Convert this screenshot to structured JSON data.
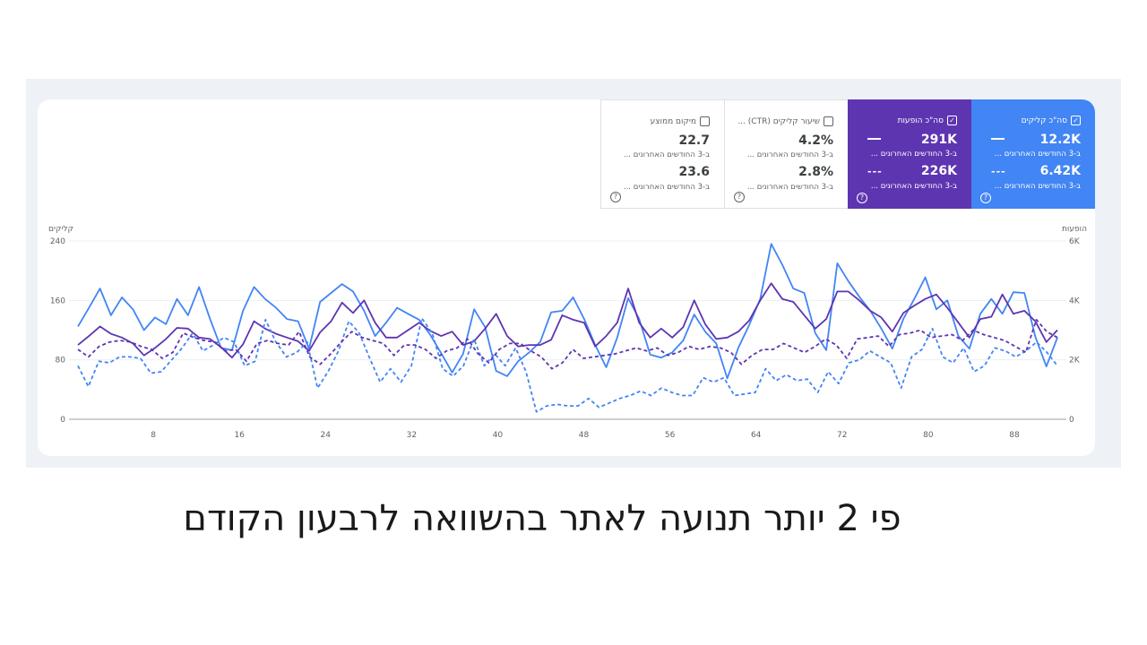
{
  "tiles": [
    {
      "title": "סה\"כ קליקים",
      "checked": true,
      "value_a": "12.2K",
      "sub_a": "ב-3 החודשים האחרונים ...",
      "value_b": "6.42K",
      "sub_b": "ב-3 החודשים האחרונים ...",
      "color": "#4285f4"
    },
    {
      "title": "סה\"כ הופעות",
      "checked": true,
      "value_a": "291K",
      "sub_a": "ב-3 החודשים האחרונים ...",
      "value_b": "226K",
      "sub_b": "ב-3 החודשים האחרונים ...",
      "color": "#5e35b1"
    },
    {
      "title": "שיעור קליקים (CTR) ...",
      "checked": false,
      "value_a": "4.2%",
      "sub_a": "ב-3 החודשים האחרונים ...",
      "value_b": "2.8%",
      "sub_b": "ב-3 החודשים האחרונים ...",
      "color": "#ffffff"
    },
    {
      "title": "מיקום ממוצע",
      "checked": false,
      "value_a": "22.7",
      "sub_a": "ב-3 החודשים האחרונים ...",
      "value_b": "23.6",
      "sub_b": "ב-3 החודשים האחרונים ...",
      "color": "#ffffff"
    }
  ],
  "caption": "פי 2 יותר תנועה לאתר בהשוואה לרבעון הקודם",
  "chart_data": {
    "type": "line",
    "left_axis_label": "קליקים",
    "right_axis_label": "הופעות",
    "left_ticks": [
      "0",
      "80",
      "160",
      "240"
    ],
    "right_ticks": [
      "0",
      "2K",
      "4K",
      "6K"
    ],
    "ylim_left": [
      0,
      240
    ],
    "ylim_right": [
      0,
      6000
    ],
    "xlim": [
      1,
      92
    ],
    "x_ticks": [
      8,
      16,
      24,
      32,
      40,
      48,
      56,
      64,
      72,
      80,
      88
    ],
    "grid": true,
    "series": [
      {
        "axis": "left",
        "color": "#4285f4",
        "dash": false,
        "values": [
          125,
          150,
          176,
          140,
          164,
          148,
          120,
          137,
          128,
          162,
          140,
          178,
          135,
          96,
          93,
          146,
          178,
          162,
          150,
          135,
          132,
          95,
          158,
          170,
          182,
          172,
          146,
          112,
          130,
          150,
          142,
          134,
          114,
          89,
          63,
          88,
          148,
          124,
          65,
          58,
          78,
          90,
          104,
          144,
          146,
          164,
          135,
          100,
          70,
          110,
          163,
          135,
          87,
          83,
          90,
          106,
          141,
          118,
          102,
          55,
          96,
          127,
          162,
          236,
          208,
          176,
          170,
          116,
          93,
          210,
          186,
          165,
          146,
          122,
          95,
          135,
          162,
          191,
          148,
          160,
          112,
          95,
          142,
          162,
          142,
          171,
          170,
          111,
          71,
          110
        ]
      },
      {
        "axis": "left",
        "color": "#5e35b1",
        "dash": false,
        "values": [
          100,
          112,
          125,
          115,
          110,
          102,
          86,
          96,
          108,
          123,
          122,
          110,
          108,
          97,
          83,
          101,
          132,
          122,
          115,
          110,
          105,
          92,
          117,
          132,
          157,
          143,
          160,
          130,
          110,
          110,
          120,
          130,
          119,
          112,
          118,
          100,
          105,
          122,
          142,
          112,
          98,
          100,
          100,
          107,
          140,
          134,
          130,
          98,
          112,
          130,
          176,
          130,
          110,
          122,
          110,
          124,
          160,
          128,
          108,
          110,
          118,
          133,
          160,
          183,
          162,
          158,
          140,
          122,
          135,
          172,
          172,
          160,
          146,
          137,
          118,
          143,
          153,
          162,
          168,
          150,
          130,
          110,
          135,
          138,
          168,
          142,
          146,
          132,
          104,
          120
        ]
      },
      {
        "axis": "right",
        "color": "#4285f4",
        "dash": true,
        "values": [
          1800,
          1100,
          1950,
          1900,
          2100,
          2100,
          2050,
          1550,
          1600,
          2000,
          2400,
          2900,
          2300,
          2500,
          2750,
          2600,
          1800,
          1950,
          3350,
          2600,
          2100,
          2250,
          2600,
          1050,
          1600,
          2300,
          3300,
          2900,
          2050,
          1250,
          1700,
          1250,
          1800,
          3400,
          2900,
          1700,
          1450,
          1800,
          2700,
          1800,
          2200,
          1800,
          2400,
          1600,
          250,
          450,
          500,
          450,
          450,
          700,
          400,
          550,
          700,
          800,
          950,
          800,
          1050,
          900,
          800,
          800,
          1400,
          1250,
          1400,
          800,
          850,
          900,
          1700,
          1300,
          1500,
          1300,
          1350,
          900,
          1600,
          1200,
          1900,
          2000,
          2300,
          2100,
          1900,
          1050,
          2100,
          2350,
          3050,
          2100,
          1900,
          2400,
          1600,
          1800,
          2400,
          2300,
          2100,
          2300,
          2600,
          2250,
          1800
        ]
      },
      {
        "axis": "right",
        "color": "#5e35b1",
        "dash": true,
        "values": [
          2350,
          2100,
          2450,
          2600,
          2650,
          2600,
          2450,
          2350,
          2050,
          2250,
          2900,
          2750,
          2650,
          2600,
          2300,
          2350,
          1950,
          2550,
          2650,
          2550,
          2500,
          2950,
          2100,
          1850,
          2200,
          2600,
          2950,
          2750,
          2650,
          2550,
          2150,
          2500,
          2500,
          2350,
          2050,
          2300,
          2400,
          2700,
          2200,
          1900,
          2350,
          2550,
          2550,
          2300,
          2100,
          1700,
          1900,
          2350,
          2050,
          2100,
          2150,
          2200,
          2300,
          2400,
          2300,
          2400,
          2150,
          2250,
          2450,
          2350,
          2450,
          2400,
          2250,
          1850,
          2150,
          2350,
          2350,
          2550,
          2400,
          2250,
          2450,
          2700,
          2500,
          2050,
          2700,
          2750,
          2800,
          2450,
          2850,
          2900,
          3000,
          2750,
          2800,
          2850,
          2650,
          3000,
          2850,
          2750,
          2650,
          2450,
          2250,
          3350,
          2950,
          2750
        ]
      }
    ]
  }
}
